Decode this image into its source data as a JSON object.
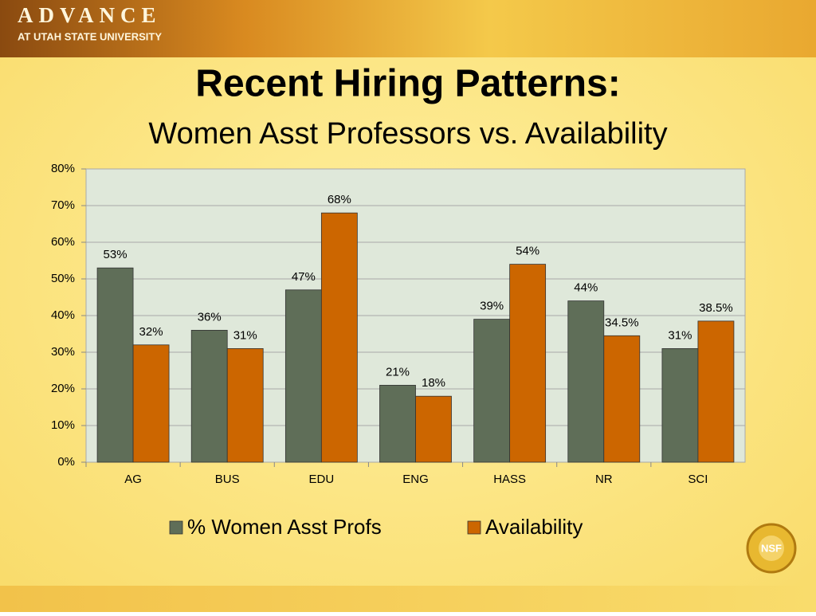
{
  "header": {
    "logo": "ADVANCE",
    "logo_subtitle": "AT UTAH STATE UNIVERSITY"
  },
  "footer_logo": "NSF",
  "chart_data": {
    "type": "bar",
    "title": "Recent Hiring Patterns:",
    "subtitle": "Women Asst Professors vs. Availability",
    "categories": [
      "AG",
      "BUS",
      "EDU",
      "ENG",
      "HASS",
      "NR",
      "SCI"
    ],
    "series": [
      {
        "name": "% Women Asst Profs",
        "color": "#5f6e58",
        "values": [
          53,
          36,
          47,
          21,
          39,
          44,
          31
        ],
        "value_labels": [
          "53%",
          "36%",
          "47%",
          "21%",
          "39%",
          "44%",
          "31%"
        ]
      },
      {
        "name": "Availability",
        "color": "#cc6600",
        "values": [
          32,
          31,
          68,
          18,
          54,
          34.5,
          38.5
        ],
        "value_labels": [
          "32%",
          "31%",
          "68%",
          "18%",
          "54%",
          "34.5%",
          "38.5%"
        ]
      }
    ],
    "ylim": [
      0,
      80
    ],
    "yticks": [
      {
        "value": 0,
        "label": "0%"
      },
      {
        "value": 10,
        "label": "10%"
      },
      {
        "value": 20,
        "label": "20%"
      },
      {
        "value": 30,
        "label": "30%"
      },
      {
        "value": 40,
        "label": "40%"
      },
      {
        "value": 50,
        "label": "50%"
      },
      {
        "value": 60,
        "label": "60%"
      },
      {
        "value": 70,
        "label": "70%"
      },
      {
        "value": 80,
        "label": "80%"
      }
    ],
    "grid": true,
    "legend": "bottom"
  }
}
